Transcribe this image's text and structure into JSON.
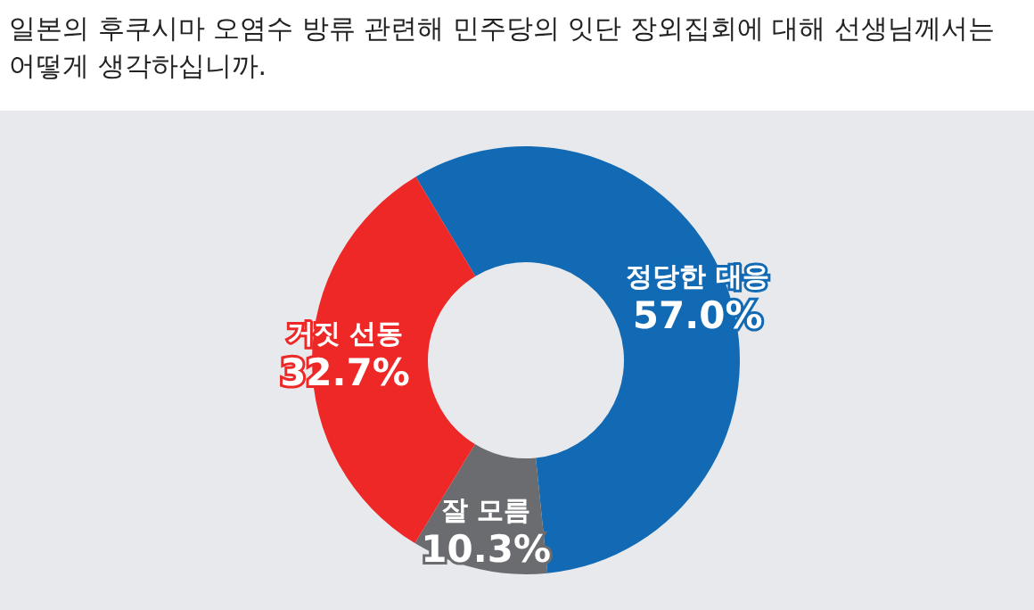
{
  "chart_data": {
    "type": "donut",
    "title": "일본의 후쿠시마 오염수 방류 관련해 민주당의 잇단 장외집회에 대해 선생님께서는 어떻게 생각하십니까.",
    "categories": [
      "정당한 대응",
      "잘 모름",
      "거짓 선동"
    ],
    "values": [
      57.0,
      10.3,
      32.7
    ],
    "colors": [
      "#116ab3",
      "#6b6c70",
      "#ee2727"
    ],
    "value_labels": [
      "57.0%",
      "10.3%",
      "32.7%"
    ]
  }
}
